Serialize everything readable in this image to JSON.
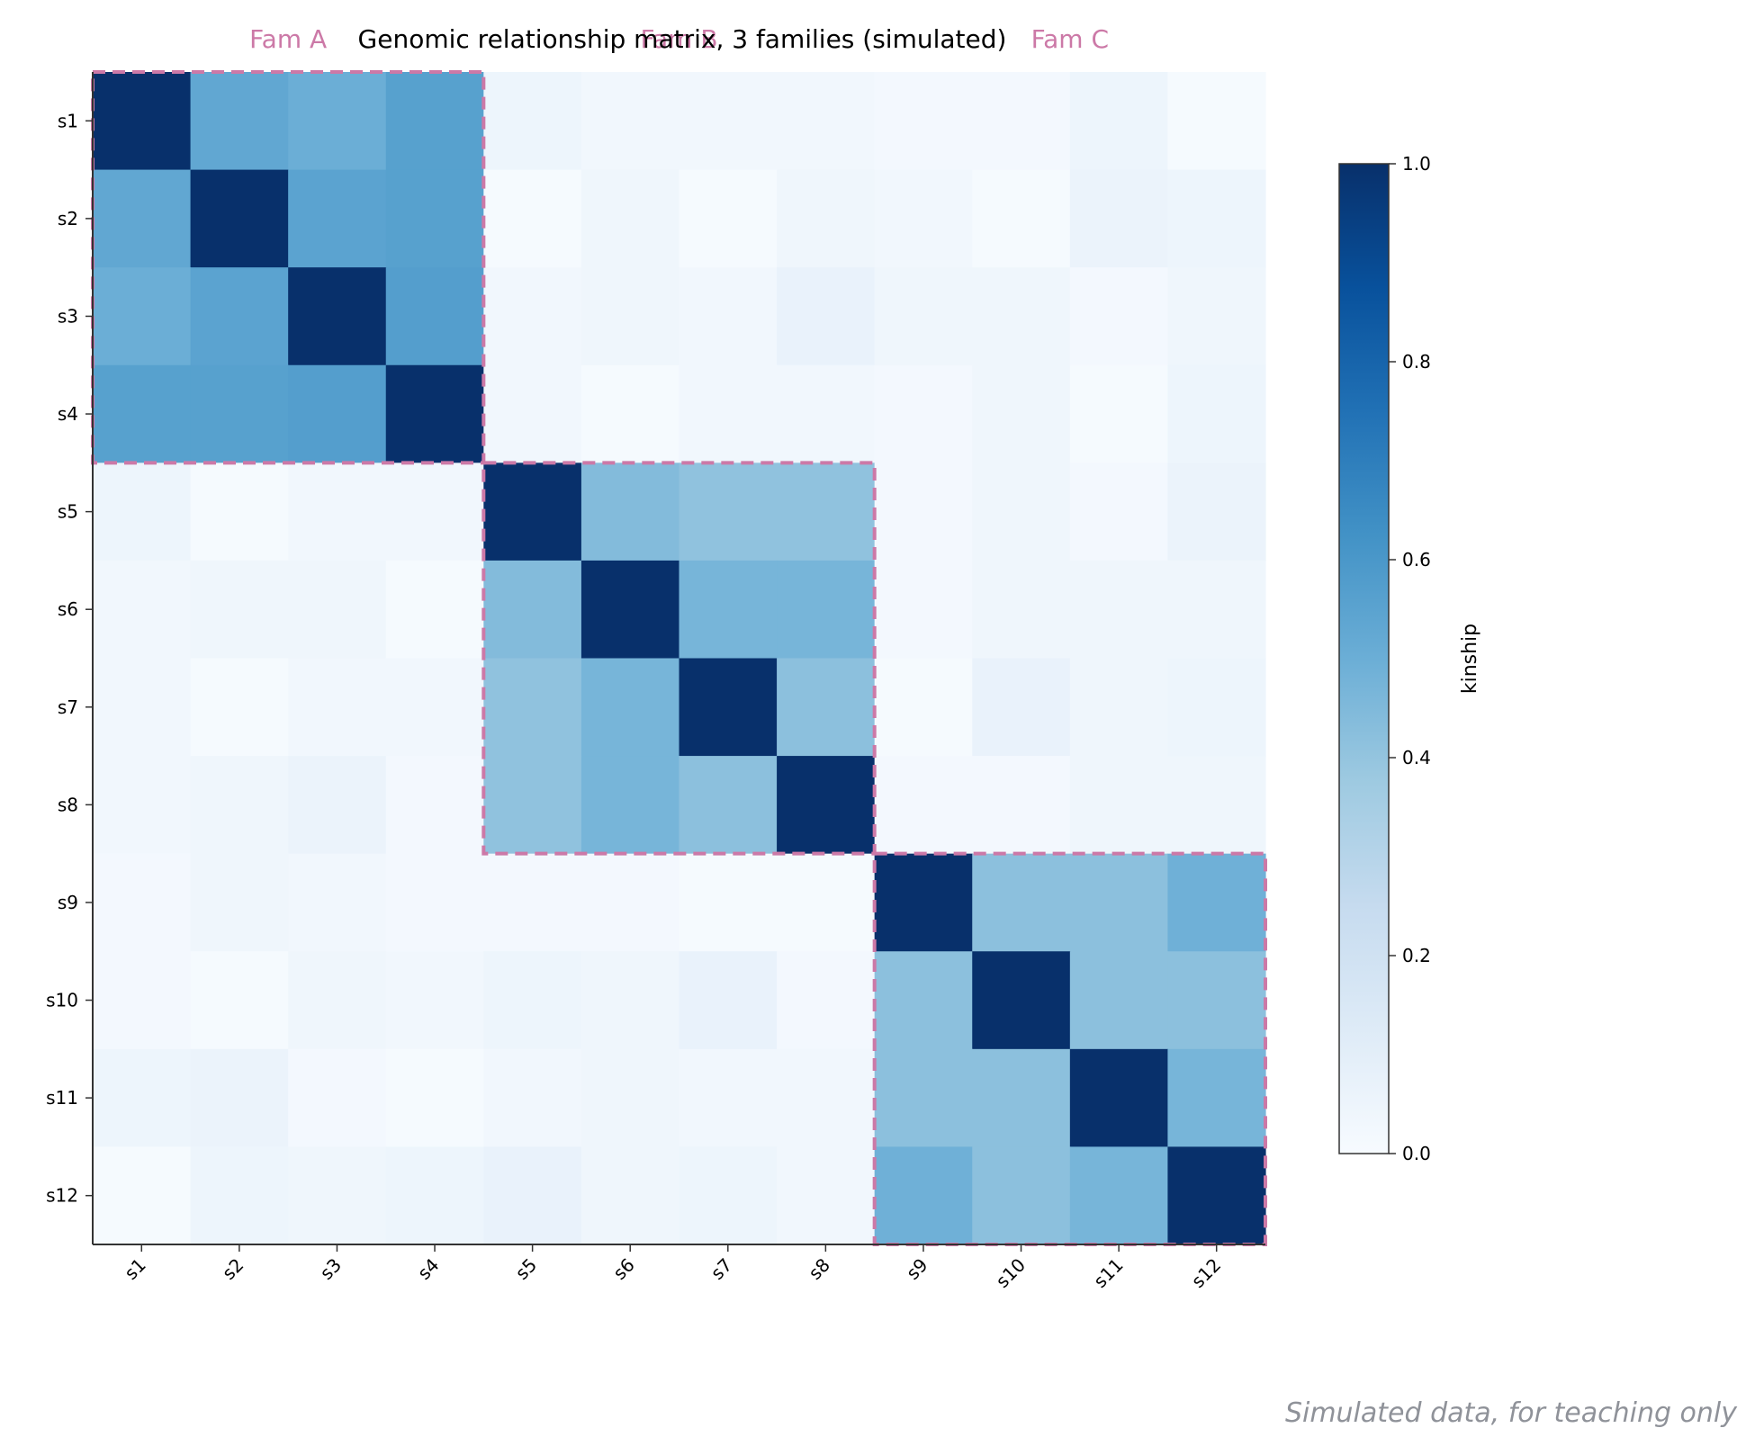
{
  "colors": {
    "family_box": "#cc79a7",
    "cmap_low": "#f7fbff",
    "cmap_high": "#08306b",
    "footer": "#8f9299"
  },
  "footer_note": "Simulated data, for teaching only",
  "chart_data": {
    "type": "heatmap",
    "title": "Genomic relationship matrix, 3 families (simulated)",
    "xlabel": "",
    "ylabel": "",
    "colorbar_label": "kinship",
    "colormap": "Blues",
    "vlim": [
      0,
      1
    ],
    "colorbar_ticks": [
      "0.0",
      "0.2",
      "0.4",
      "0.6",
      "0.8",
      "1.0"
    ],
    "samples": [
      "s1",
      "s2",
      "s3",
      "s4",
      "s5",
      "s6",
      "s7",
      "s8",
      "s9",
      "s10",
      "s11",
      "s12"
    ],
    "families": [
      {
        "label": "Fam A",
        "start": 0,
        "end": 3
      },
      {
        "label": "Fam B",
        "start": 4,
        "end": 7
      },
      {
        "label": "Fam C",
        "start": 8,
        "end": 11
      }
    ],
    "matrix": [
      [
        1.0,
        0.53,
        0.5,
        0.56,
        0.05,
        0.03,
        0.03,
        0.03,
        0.02,
        0.02,
        0.05,
        0.01
      ],
      [
        0.53,
        1.0,
        0.55,
        0.56,
        0.01,
        0.04,
        0.01,
        0.04,
        0.03,
        0.01,
        0.06,
        0.05
      ],
      [
        0.5,
        0.55,
        1.0,
        0.57,
        0.03,
        0.04,
        0.03,
        0.07,
        0.04,
        0.04,
        0.02,
        0.04
      ],
      [
        0.56,
        0.56,
        0.57,
        1.0,
        0.03,
        0.01,
        0.03,
        0.03,
        0.02,
        0.04,
        0.01,
        0.05
      ],
      [
        0.05,
        0.01,
        0.03,
        0.03,
        1.0,
        0.44,
        0.41,
        0.41,
        0.02,
        0.04,
        0.02,
        0.06
      ],
      [
        0.03,
        0.04,
        0.04,
        0.01,
        0.44,
        1.0,
        0.47,
        0.47,
        0.02,
        0.04,
        0.04,
        0.04
      ],
      [
        0.03,
        0.01,
        0.03,
        0.03,
        0.41,
        0.47,
        1.0,
        0.42,
        0.01,
        0.07,
        0.04,
        0.05
      ],
      [
        0.03,
        0.04,
        0.06,
        0.02,
        0.41,
        0.47,
        0.42,
        1.0,
        0.02,
        0.02,
        0.04,
        0.04
      ],
      [
        0.02,
        0.04,
        0.03,
        0.02,
        0.02,
        0.02,
        0.01,
        0.01,
        1.0,
        0.42,
        0.42,
        0.49
      ],
      [
        0.02,
        0.01,
        0.04,
        0.03,
        0.05,
        0.04,
        0.07,
        0.02,
        0.42,
        1.0,
        0.42,
        0.42
      ],
      [
        0.05,
        0.06,
        0.02,
        0.01,
        0.03,
        0.04,
        0.03,
        0.03,
        0.42,
        0.42,
        1.0,
        0.47
      ],
      [
        0.01,
        0.05,
        0.04,
        0.05,
        0.07,
        0.04,
        0.05,
        0.03,
        0.49,
        0.42,
        0.47,
        1.0
      ]
    ]
  }
}
